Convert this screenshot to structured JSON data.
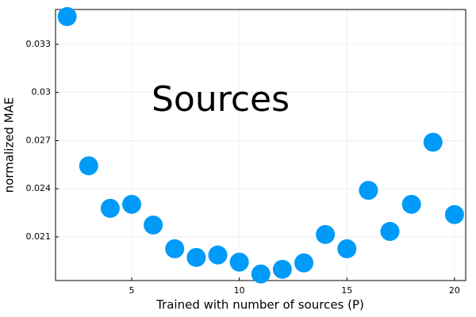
{
  "chart_data": {
    "type": "scatter",
    "annotation": "Sources",
    "xlabel": "Trained with number of sources (P)",
    "ylabel": "normalized MAE",
    "x": [
      2,
      3,
      4,
      5,
      6,
      7,
      8,
      9,
      10,
      11,
      12,
      13,
      14,
      15,
      16,
      17,
      18,
      19,
      20
    ],
    "series": [
      {
        "color": "#009af9",
        "values": [
          0.03473,
          0.02543,
          0.02278,
          0.02303,
          0.02174,
          0.02026,
          0.01972,
          0.01987,
          0.01943,
          0.01869,
          0.01898,
          0.01938,
          0.02115,
          0.02026,
          0.0239,
          0.02134,
          0.02303,
          0.0269,
          0.02239
        ]
      }
    ],
    "xlim": [
      1.46,
      20.52
    ],
    "ylim": [
      0.01828,
      0.03517
    ],
    "xticks": [
      5,
      10,
      15,
      20
    ],
    "yticks": [
      0.021,
      0.024,
      0.027,
      0.03,
      0.033
    ],
    "grid": true
  }
}
